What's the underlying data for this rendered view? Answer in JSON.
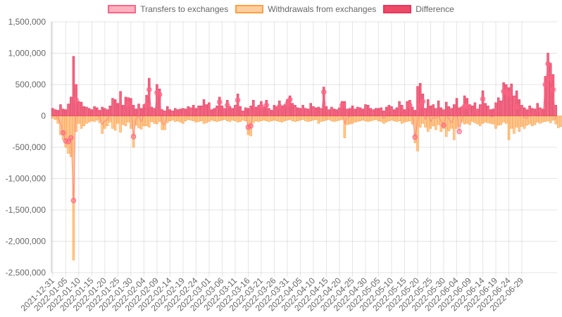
{
  "chart_data": {
    "type": "bar",
    "title": "",
    "xlabel": "",
    "ylabel": "",
    "ylim": [
      -2500000,
      1500000
    ],
    "yticks": [
      "1,500,000",
      "1,000,000",
      "500,000",
      "0",
      "-500,000",
      "-1,000,000",
      "-1,500,000",
      "-2,000,000",
      "-2,500,000"
    ],
    "ytick_values": [
      1500000,
      1000000,
      500000,
      0,
      -500000,
      -1000000,
      -1500000,
      -2000000,
      -2500000
    ],
    "x_start": "2021-12-31",
    "x_tick_step_days": 5,
    "xticks": [
      "2021-12-31",
      "2022-01-05",
      "2022-01-10",
      "2022-01-15",
      "2022-01-20",
      "2022-01-25",
      "2022-01-30",
      "2022-02-04",
      "2022-02-09",
      "2022-02-14",
      "2022-02-19",
      "2022-02-24",
      "2022-03-01",
      "2022-03-06",
      "2022-03-11",
      "2022-03-16",
      "2022-03-21",
      "2022-03-26",
      "2022-03-31",
      "2022-04-05",
      "2022-04-10",
      "2022-04-15",
      "2022-04-20",
      "2022-04-25",
      "2022-04-30",
      "2022-05-05",
      "2022-05-10",
      "2022-05-15",
      "2022-05-20",
      "2022-05-25",
      "2022-05-30",
      "2022-06-04",
      "2022-06-09",
      "2022-06-14",
      "2022-06-19",
      "2022-06-24",
      "2022-06-29"
    ],
    "grid": true,
    "legend_position": "top",
    "series": [
      {
        "name": "Transfers to exchanges",
        "color": "#ff6384",
        "values": [
          120000,
          100000,
          90000,
          180000,
          110000,
          100000,
          190000,
          300000,
          950000,
          500000,
          230000,
          220000,
          150000,
          140000,
          120000,
          100000,
          150000,
          130000,
          90000,
          140000,
          120000,
          100000,
          160000,
          280000,
          260000,
          200000,
          390000,
          170000,
          300000,
          290000,
          280000,
          170000,
          110000,
          190000,
          120000,
          180000,
          330000,
          600000,
          140000,
          120000,
          500000,
          430000,
          100000,
          80000,
          150000,
          100000,
          80000,
          120000,
          100000,
          110000,
          120000,
          110000,
          150000,
          130000,
          170000,
          120000,
          160000,
          160000,
          260000,
          180000,
          210000,
          100000,
          120000,
          160000,
          300000,
          160000,
          120000,
          250000,
          150000,
          120000,
          170000,
          350000,
          150000,
          80000,
          130000,
          120000,
          160000,
          250000,
          140000,
          170000,
          230000,
          140000,
          250000,
          120000,
          90000,
          170000,
          150000,
          240000,
          160000,
          180000,
          260000,
          320000,
          200000,
          170000,
          130000,
          120000,
          170000,
          120000,
          110000,
          200000,
          150000,
          130000,
          140000,
          120000,
          460000,
          150000,
          100000,
          140000,
          110000,
          100000,
          130000,
          230000,
          230000,
          110000,
          120000,
          160000,
          110000,
          140000,
          130000,
          110000,
          180000,
          170000,
          120000,
          100000,
          120000,
          120000,
          130000,
          80000,
          140000,
          170000,
          150000,
          100000,
          130000,
          230000,
          170000,
          100000,
          230000,
          250000,
          140000,
          90000,
          470000,
          520000,
          350000,
          120000,
          260000,
          160000,
          180000,
          120000,
          240000,
          130000,
          100000,
          220000,
          150000,
          120000,
          180000,
          280000,
          130000,
          150000,
          320000,
          280000,
          180000,
          160000,
          210000,
          110000,
          180000,
          400000,
          200000,
          160000,
          100000,
          110000,
          210000,
          290000,
          240000,
          530000,
          500000,
          450000,
          510000,
          320000,
          400000,
          260000,
          170000,
          130000,
          100000,
          160000,
          120000,
          110000,
          200000,
          130000,
          110000,
          630000,
          1000000,
          840000,
          660000,
          170000
        ]
      },
      {
        "name": "Withdrawals from exchanges",
        "color": "#ff9f40",
        "values": [
          -40000,
          -60000,
          -120000,
          -300000,
          -380000,
          -500000,
          -600000,
          -650000,
          -2300000,
          -250000,
          -120000,
          -200000,
          -160000,
          -120000,
          -100000,
          -80000,
          -90000,
          -70000,
          -110000,
          -280000,
          -200000,
          -160000,
          -100000,
          -200000,
          -230000,
          -120000,
          -260000,
          -140000,
          -160000,
          -100000,
          -200000,
          -500000,
          -150000,
          -190000,
          -210000,
          -160000,
          -160000,
          -180000,
          -90000,
          -120000,
          -130000,
          -90000,
          -220000,
          -220000,
          -110000,
          -80000,
          -70000,
          -90000,
          -80000,
          -100000,
          -120000,
          -80000,
          -60000,
          -70000,
          -80000,
          -100000,
          -90000,
          -80000,
          -120000,
          -110000,
          -90000,
          -70000,
          -80000,
          -90000,
          -80000,
          -70000,
          -60000,
          -80000,
          -90000,
          -70000,
          -80000,
          -100000,
          -90000,
          -70000,
          -80000,
          -300000,
          -320000,
          -110000,
          -80000,
          -90000,
          -80000,
          -70000,
          -80000,
          -90000,
          -80000,
          -70000,
          -80000,
          -90000,
          -100000,
          -80000,
          -70000,
          -60000,
          -80000,
          -90000,
          -80000,
          -70000,
          -60000,
          -80000,
          -90000,
          -80000,
          -70000,
          -60000,
          -120000,
          -90000,
          -80000,
          -70000,
          -60000,
          -80000,
          -90000,
          -80000,
          -70000,
          -60000,
          -350000,
          -140000,
          -130000,
          -120000,
          -100000,
          -90000,
          -80000,
          -70000,
          -80000,
          -90000,
          -80000,
          -70000,
          -60000,
          -80000,
          -90000,
          -120000,
          -100000,
          -80000,
          -70000,
          -80000,
          -90000,
          -80000,
          -120000,
          -100000,
          -90000,
          -80000,
          -130000,
          -430000,
          -560000,
          -180000,
          -120000,
          -180000,
          -250000,
          -200000,
          -160000,
          -220000,
          -140000,
          -250000,
          -200000,
          -330000,
          -240000,
          -200000,
          -380000,
          -200000,
          -170000,
          -100000,
          -130000,
          -120000,
          -140000,
          -90000,
          -110000,
          -130000,
          -160000,
          -120000,
          -100000,
          -110000,
          -120000,
          -130000,
          -200000,
          -150000,
          -140000,
          -100000,
          -120000,
          -380000,
          -200000,
          -280000,
          -180000,
          -250000,
          -170000,
          -200000,
          -150000,
          -130000,
          -160000,
          -140000,
          -100000,
          -120000,
          -100000,
          -90000,
          -80000,
          -110000,
          -70000,
          -130000,
          -190000,
          -170000,
          -240000,
          -230000
        ]
      },
      {
        "name": "Difference",
        "color": "#ff6384",
        "show_markers": true,
        "values": [
          80000,
          40000,
          -30000,
          -120000,
          -270000,
          -400000,
          -410000,
          -350000,
          -1350000,
          250000,
          110000,
          20000,
          -10000,
          20000,
          20000,
          20000,
          60000,
          60000,
          -20000,
          -140000,
          -80000,
          -60000,
          60000,
          80000,
          30000,
          80000,
          130000,
          30000,
          140000,
          190000,
          80000,
          -330000,
          -40000,
          0,
          -90000,
          20000,
          170000,
          420000,
          50000,
          0,
          370000,
          340000,
          -120000,
          -140000,
          40000,
          20000,
          10000,
          30000,
          20000,
          10000,
          0,
          30000,
          90000,
          60000,
          90000,
          20000,
          70000,
          80000,
          140000,
          70000,
          120000,
          30000,
          40000,
          70000,
          220000,
          90000,
          60000,
          170000,
          60000,
          50000,
          90000,
          250000,
          60000,
          10000,
          50000,
          -180000,
          -160000,
          140000,
          60000,
          80000,
          150000,
          70000,
          170000,
          30000,
          10000,
          100000,
          70000,
          150000,
          60000,
          100000,
          190000,
          260000,
          120000,
          80000,
          50000,
          50000,
          110000,
          40000,
          20000,
          120000,
          80000,
          70000,
          20000,
          30000,
          380000,
          80000,
          40000,
          60000,
          50000,
          20000,
          40000,
          170000,
          -120000,
          -30000,
          -10000,
          40000,
          10000,
          50000,
          50000,
          40000,
          100000,
          80000,
          40000,
          40000,
          40000,
          40000,
          50000,
          -40000,
          40000,
          90000,
          80000,
          20000,
          50000,
          140000,
          50000,
          0,
          130000,
          170000,
          10000,
          -340000,
          -90000,
          170000,
          230000,
          -60000,
          80000,
          -90000,
          -20000,
          -40000,
          20000,
          -90000,
          -150000,
          30000,
          -50000,
          -110000,
          -20000,
          80000,
          -250000,
          -50000,
          150000,
          150000,
          50000,
          20000,
          120000,
          0,
          70000,
          270000,
          40000,
          40000,
          -10000,
          -10000,
          80000,
          90000,
          90000,
          390000,
          370000,
          350000,
          130000,
          120000,
          150000,
          90000,
          20000,
          -30000,
          -40000,
          60000,
          0,
          10000,
          110000,
          50000,
          0,
          500000,
          830000,
          600000,
          420000,
          -60000
        ]
      }
    ]
  }
}
